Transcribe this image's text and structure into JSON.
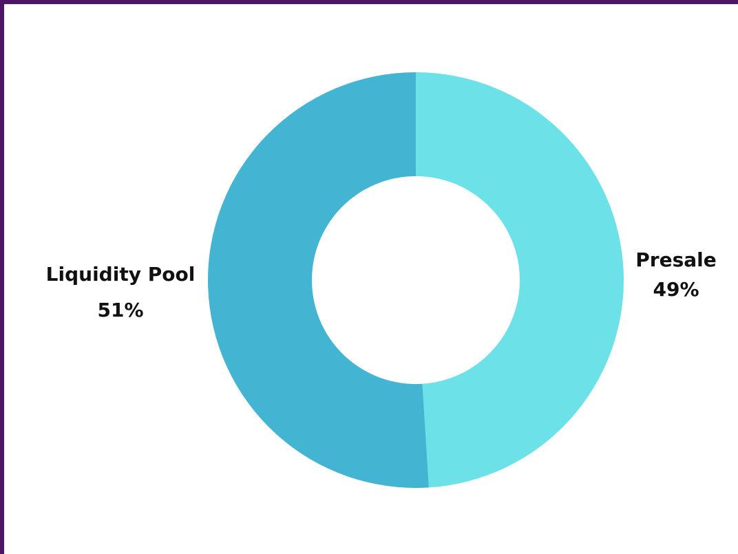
{
  "chart_data": {
    "type": "pie",
    "variant": "donut",
    "title": "",
    "legend": "none",
    "slices": [
      {
        "label": "Presale",
        "value": 49,
        "value_label": "49%",
        "color": "#6ce1e7"
      },
      {
        "label": "Liquidity Pool",
        "value": 51,
        "value_label": "51%",
        "color": "#44b4d3"
      }
    ]
  },
  "colors": {
    "frame": "#4e1468",
    "background": "#ffffff"
  }
}
